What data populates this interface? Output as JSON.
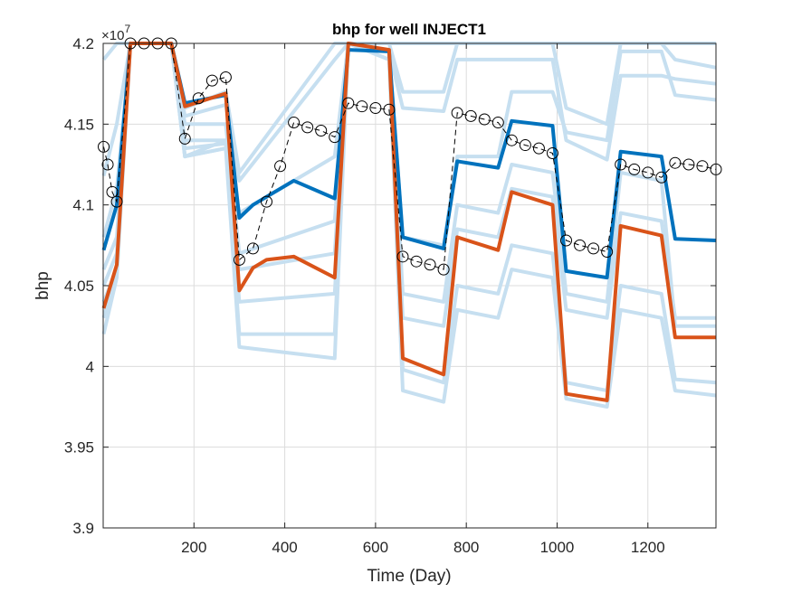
{
  "chart_data": {
    "type": "line",
    "title": "bhp for well INJECT1",
    "xlabel": "Time (Day)",
    "ylabel": "bhp",
    "exponent_label": "×10",
    "exponent_power": "7",
    "xlim": [
      0,
      1350
    ],
    "ylim": [
      3.9,
      4.2
    ],
    "xticks": [
      200,
      400,
      600,
      800,
      1000,
      1200
    ],
    "xtick_labels": [
      "200",
      "400",
      "600",
      "800",
      "1000",
      "1200"
    ],
    "yticks": [
      3.9,
      3.95,
      4.0,
      4.05,
      4.1,
      4.15,
      4.2
    ],
    "ytick_labels": [
      "3.9",
      "3.95",
      "4",
      "4.05",
      "4.1",
      "4.15",
      "4.2"
    ],
    "grid": true,
    "colors": {
      "ensemble": "#c6dff0",
      "blue": "#0072bd",
      "orange": "#d95319",
      "observed": "#000000"
    },
    "ensemble": [
      [
        [
          1,
          4.118
        ],
        [
          30,
          4.15
        ],
        [
          60,
          4.2
        ],
        [
          150,
          4.2
        ],
        [
          180,
          4.155
        ],
        [
          270,
          4.162
        ],
        [
          300,
          4.115
        ],
        [
          510,
          4.19
        ],
        [
          540,
          4.2
        ],
        [
          630,
          4.2
        ],
        [
          660,
          4.17
        ],
        [
          750,
          4.17
        ],
        [
          780,
          4.2
        ],
        [
          870,
          4.2
        ],
        [
          900,
          4.2
        ],
        [
          990,
          4.2
        ],
        [
          1020,
          4.16
        ],
        [
          1110,
          4.15
        ],
        [
          1140,
          4.2
        ],
        [
          1230,
          4.2
        ],
        [
          1260,
          4.19
        ],
        [
          1350,
          4.185
        ]
      ],
      [
        [
          1,
          4.19
        ],
        [
          30,
          4.2
        ],
        [
          60,
          4.2
        ],
        [
          150,
          4.2
        ],
        [
          180,
          4.16
        ],
        [
          270,
          4.17
        ],
        [
          300,
          4.12
        ],
        [
          510,
          4.2
        ],
        [
          540,
          4.2
        ],
        [
          630,
          4.2
        ],
        [
          660,
          4.2
        ],
        [
          750,
          4.2
        ],
        [
          780,
          4.2
        ],
        [
          870,
          4.2
        ],
        [
          900,
          4.2
        ],
        [
          990,
          4.2
        ],
        [
          1020,
          4.2
        ],
        [
          1110,
          4.2
        ],
        [
          1140,
          4.2
        ],
        [
          1230,
          4.2
        ],
        [
          1260,
          4.2
        ],
        [
          1350,
          4.2
        ]
      ],
      [
        [
          1,
          4.08
        ],
        [
          30,
          4.11
        ],
        [
          60,
          4.2
        ],
        [
          150,
          4.2
        ],
        [
          180,
          4.13
        ],
        [
          270,
          4.14
        ],
        [
          300,
          4.095
        ],
        [
          510,
          4.13
        ],
        [
          540,
          4.2
        ],
        [
          630,
          4.195
        ],
        [
          660,
          4.16
        ],
        [
          750,
          4.158
        ],
        [
          780,
          4.19
        ],
        [
          870,
          4.19
        ],
        [
          900,
          4.19
        ],
        [
          990,
          4.19
        ],
        [
          1020,
          4.14
        ],
        [
          1110,
          4.128
        ],
        [
          1140,
          4.18
        ],
        [
          1230,
          4.18
        ],
        [
          1260,
          4.178
        ],
        [
          1350,
          4.175
        ]
      ],
      [
        [
          1,
          4.05
        ],
        [
          30,
          4.07
        ],
        [
          60,
          4.2
        ],
        [
          150,
          4.2
        ],
        [
          180,
          4.13
        ],
        [
          270,
          4.135
        ],
        [
          300,
          4.06
        ],
        [
          510,
          4.07
        ],
        [
          540,
          4.2
        ],
        [
          630,
          4.195
        ],
        [
          660,
          4.08
        ],
        [
          750,
          4.075
        ],
        [
          780,
          4.13
        ],
        [
          870,
          4.13
        ],
        [
          900,
          4.17
        ],
        [
          990,
          4.17
        ],
        [
          1020,
          4.145
        ],
        [
          1110,
          4.14
        ],
        [
          1140,
          4.195
        ],
        [
          1230,
          4.195
        ],
        [
          1260,
          4.168
        ],
        [
          1350,
          4.165
        ]
      ],
      [
        [
          1,
          4.03
        ],
        [
          30,
          4.06
        ],
        [
          60,
          4.2
        ],
        [
          150,
          4.2
        ],
        [
          180,
          4.135
        ],
        [
          270,
          4.138
        ],
        [
          300,
          4.04
        ],
        [
          510,
          4.045
        ],
        [
          540,
          4.2
        ],
        [
          630,
          4.195
        ],
        [
          660,
          4.03
        ],
        [
          750,
          4.025
        ],
        [
          780,
          4.085
        ],
        [
          870,
          4.08
        ],
        [
          900,
          4.11
        ],
        [
          990,
          4.105
        ],
        [
          1020,
          4.035
        ],
        [
          1110,
          4.03
        ],
        [
          1140,
          4.095
        ],
        [
          1230,
          4.09
        ],
        [
          1260,
          4.03
        ],
        [
          1350,
          4.03
        ]
      ],
      [
        [
          1,
          4.02
        ],
        [
          30,
          4.055
        ],
        [
          60,
          4.2
        ],
        [
          150,
          4.2
        ],
        [
          180,
          4.13
        ],
        [
          270,
          4.135
        ],
        [
          300,
          4.012
        ],
        [
          510,
          4.005
        ],
        [
          540,
          4.2
        ],
        [
          630,
          4.19
        ],
        [
          660,
          3.985
        ],
        [
          750,
          3.978
        ],
        [
          780,
          4.035
        ],
        [
          870,
          4.03
        ],
        [
          900,
          4.06
        ],
        [
          990,
          4.055
        ],
        [
          1020,
          3.98
        ],
        [
          1110,
          3.975
        ],
        [
          1140,
          4.035
        ],
        [
          1230,
          4.03
        ],
        [
          1260,
          3.985
        ],
        [
          1350,
          3.982
        ]
      ],
      [
        [
          1,
          4.04
        ],
        [
          30,
          4.06
        ],
        [
          60,
          4.2
        ],
        [
          150,
          4.2
        ],
        [
          180,
          4.14
        ],
        [
          270,
          4.14
        ],
        [
          300,
          4.02
        ],
        [
          510,
          4.02
        ],
        [
          540,
          4.2
        ],
        [
          630,
          4.19
        ],
        [
          660,
          3.998
        ],
        [
          750,
          3.99
        ],
        [
          780,
          4.05
        ],
        [
          870,
          4.045
        ],
        [
          900,
          4.075
        ],
        [
          990,
          4.07
        ],
        [
          1020,
          3.99
        ],
        [
          1110,
          3.985
        ],
        [
          1140,
          4.05
        ],
        [
          1230,
          4.045
        ],
        [
          1260,
          3.992
        ],
        [
          1350,
          3.99
        ]
      ],
      [
        [
          1,
          4.06
        ],
        [
          30,
          4.08
        ],
        [
          60,
          4.2
        ],
        [
          150,
          4.2
        ],
        [
          180,
          4.15
        ],
        [
          270,
          4.15
        ],
        [
          300,
          4.07
        ],
        [
          510,
          4.09
        ],
        [
          540,
          4.2
        ],
        [
          630,
          4.195
        ],
        [
          660,
          4.045
        ],
        [
          750,
          4.04
        ],
        [
          780,
          4.1
        ],
        [
          870,
          4.095
        ],
        [
          900,
          4.125
        ],
        [
          990,
          4.12
        ],
        [
          1020,
          4.045
        ],
        [
          1110,
          4.04
        ],
        [
          1140,
          4.12
        ],
        [
          1230,
          4.115
        ],
        [
          1260,
          4.025
        ],
        [
          1350,
          4.025
        ]
      ]
    ],
    "series": [
      {
        "color": "#0072bd",
        "points": [
          [
            1,
            4.072
          ],
          [
            30,
            4.1
          ],
          [
            60,
            4.2
          ],
          [
            150,
            4.2
          ],
          [
            180,
            4.163
          ],
          [
            270,
            4.168
          ],
          [
            300,
            4.092
          ],
          [
            330,
            4.1
          ],
          [
            360,
            4.105
          ],
          [
            420,
            4.115
          ],
          [
            510,
            4.104
          ],
          [
            540,
            4.196
          ],
          [
            630,
            4.195
          ],
          [
            660,
            4.08
          ],
          [
            750,
            4.073
          ],
          [
            780,
            4.127
          ],
          [
            870,
            4.123
          ],
          [
            900,
            4.152
          ],
          [
            990,
            4.149
          ],
          [
            1020,
            4.059
          ],
          [
            1110,
            4.055
          ],
          [
            1140,
            4.133
          ],
          [
            1230,
            4.13
          ],
          [
            1260,
            4.079
          ],
          [
            1350,
            4.078
          ]
        ]
      },
      {
        "color": "#d95319",
        "points": [
          [
            1,
            4.036
          ],
          [
            30,
            4.063
          ],
          [
            60,
            4.2
          ],
          [
            150,
            4.2
          ],
          [
            180,
            4.161
          ],
          [
            270,
            4.169
          ],
          [
            300,
            4.047
          ],
          [
            330,
            4.061
          ],
          [
            360,
            4.066
          ],
          [
            420,
            4.068
          ],
          [
            510,
            4.055
          ],
          [
            540,
            4.2
          ],
          [
            630,
            4.196
          ],
          [
            660,
            4.005
          ],
          [
            750,
            3.995
          ],
          [
            780,
            4.08
          ],
          [
            870,
            4.072
          ],
          [
            900,
            4.108
          ],
          [
            990,
            4.1
          ],
          [
            1020,
            3.983
          ],
          [
            1110,
            3.979
          ],
          [
            1140,
            4.087
          ],
          [
            1230,
            4.081
          ],
          [
            1260,
            4.018
          ],
          [
            1350,
            4.018
          ]
        ]
      }
    ],
    "observed": {
      "color": "#000000",
      "points": [
        [
          1,
          4.136
        ],
        [
          10,
          4.125
        ],
        [
          20,
          4.108
        ],
        [
          30,
          4.102
        ],
        [
          60,
          4.2
        ],
        [
          90,
          4.2
        ],
        [
          120,
          4.2
        ],
        [
          150,
          4.2
        ],
        [
          180,
          4.141
        ],
        [
          210,
          4.166
        ],
        [
          240,
          4.177
        ],
        [
          270,
          4.179
        ],
        [
          300,
          4.066
        ],
        [
          330,
          4.073
        ],
        [
          360,
          4.102
        ],
        [
          390,
          4.124
        ],
        [
          420,
          4.151
        ],
        [
          450,
          4.148
        ],
        [
          480,
          4.146
        ],
        [
          510,
          4.142
        ],
        [
          540,
          4.163
        ],
        [
          570,
          4.161
        ],
        [
          600,
          4.16
        ],
        [
          630,
          4.159
        ],
        [
          660,
          4.068
        ],
        [
          690,
          4.065
        ],
        [
          720,
          4.063
        ],
        [
          750,
          4.06
        ],
        [
          780,
          4.157
        ],
        [
          810,
          4.155
        ],
        [
          840,
          4.153
        ],
        [
          870,
          4.151
        ],
        [
          900,
          4.14
        ],
        [
          930,
          4.137
        ],
        [
          960,
          4.135
        ],
        [
          990,
          4.132
        ],
        [
          1020,
          4.078
        ],
        [
          1050,
          4.075
        ],
        [
          1080,
          4.073
        ],
        [
          1110,
          4.071
        ],
        [
          1140,
          4.125
        ],
        [
          1170,
          4.122
        ],
        [
          1200,
          4.12
        ],
        [
          1230,
          4.117
        ],
        [
          1260,
          4.126
        ],
        [
          1290,
          4.125
        ],
        [
          1320,
          4.124
        ],
        [
          1350,
          4.122
        ]
      ]
    }
  }
}
